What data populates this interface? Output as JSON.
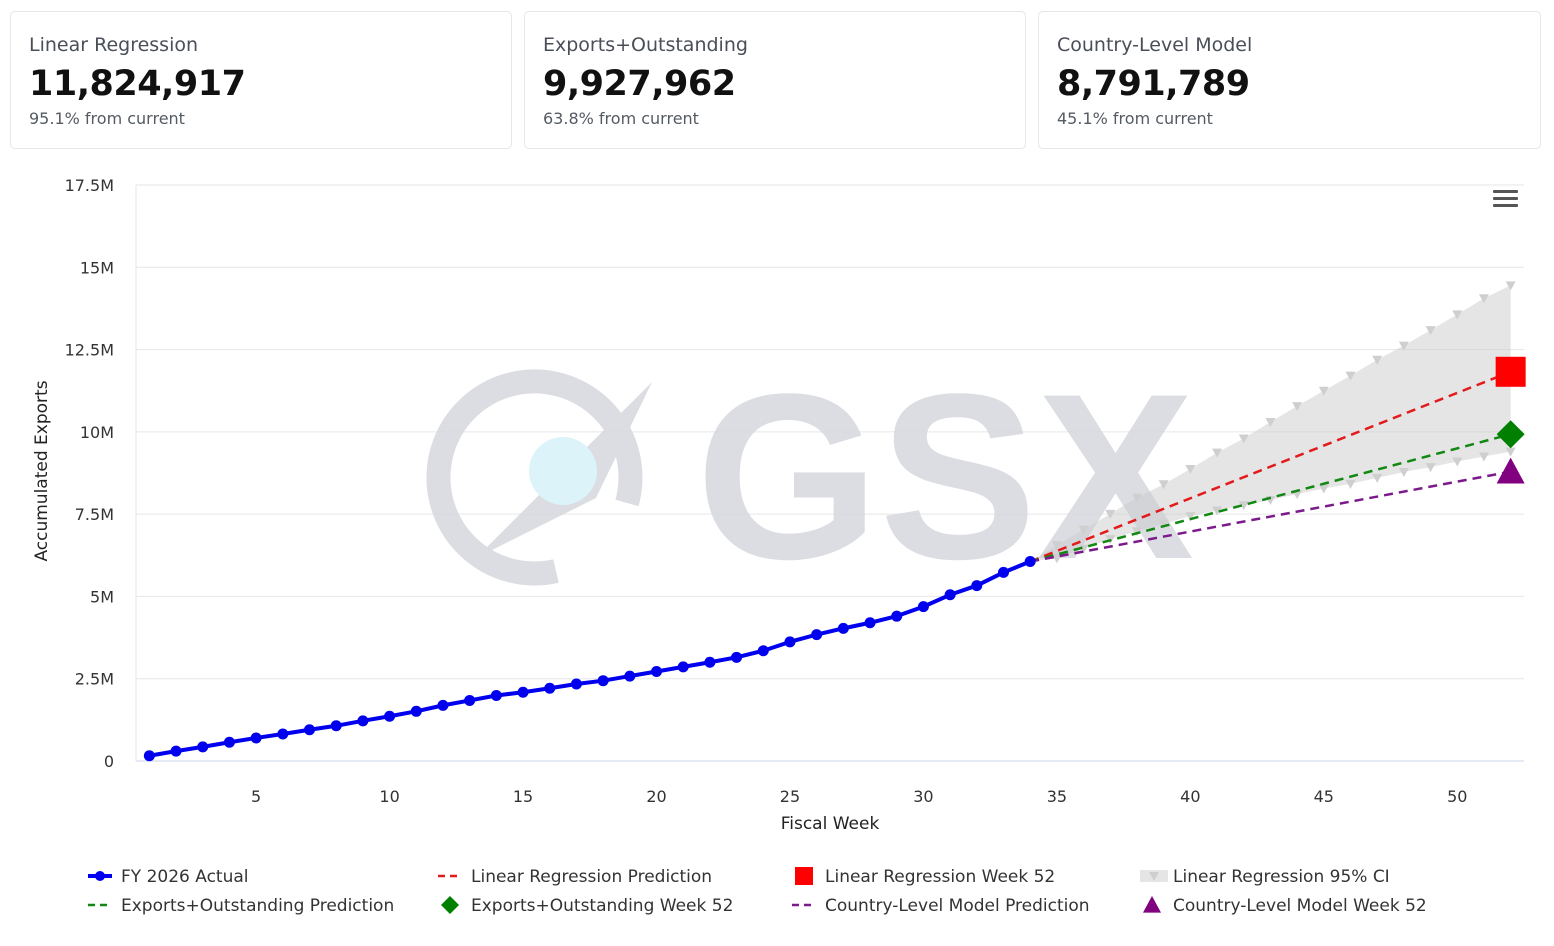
{
  "cards": [
    {
      "label": "Linear Regression",
      "value": "11,824,917",
      "sub": "95.1% from current"
    },
    {
      "label": "Exports+Outstanding",
      "value": "9,927,962",
      "sub": "63.8% from current"
    },
    {
      "label": "Country-Level Model",
      "value": "8,791,789",
      "sub": "45.1% from current"
    }
  ],
  "watermark": "GSX",
  "chart_data": {
    "type": "line",
    "xlabel": "Fiscal Week",
    "ylabel": "Accumulated Exports",
    "xlim": [
      0.5,
      52.5
    ],
    "ylim": [
      0,
      17500000
    ],
    "x_ticks": [
      5,
      10,
      15,
      20,
      25,
      30,
      35,
      40,
      45,
      50
    ],
    "y_ticks": [
      0,
      2500000,
      5000000,
      7500000,
      10000000,
      12500000,
      15000000,
      17500000
    ],
    "y_tick_labels": [
      "0",
      "2.5M",
      "5M",
      "7.5M",
      "10M",
      "12.5M",
      "15M",
      "17.5M"
    ],
    "grid": "horizontal",
    "legend_position": "bottom",
    "actual": {
      "name": "FY 2026 Actual",
      "color": "#0000ee",
      "x": [
        1,
        2,
        3,
        4,
        5,
        6,
        7,
        8,
        9,
        10,
        11,
        12,
        13,
        14,
        15,
        16,
        17,
        18,
        19,
        20,
        21,
        22,
        23,
        24,
        25,
        26,
        27,
        28,
        29,
        30,
        31,
        32,
        33,
        34
      ],
      "values": [
        160000,
        300000,
        430000,
        570000,
        700000,
        820000,
        950000,
        1070000,
        1220000,
        1360000,
        1510000,
        1690000,
        1840000,
        1990000,
        2090000,
        2210000,
        2340000,
        2440000,
        2580000,
        2720000,
        2860000,
        3000000,
        3150000,
        3350000,
        3620000,
        3840000,
        4030000,
        4200000,
        4400000,
        4690000,
        5050000,
        5330000,
        5730000,
        6060000
      ]
    },
    "predictions": [
      {
        "name": "Linear Regression Prediction",
        "color": "#e31a1c",
        "start": [
          34,
          6060000
        ],
        "end": [
          52,
          11824917
        ]
      },
      {
        "name": "Exports+Outstanding Prediction",
        "color": "#118811",
        "start": [
          34,
          6060000
        ],
        "end": [
          52,
          9927962
        ]
      },
      {
        "name": "Country-Level Model Prediction",
        "color": "#7b1a8a",
        "start": [
          34,
          6060000
        ],
        "end": [
          52,
          8791789
        ]
      }
    ],
    "week52": [
      {
        "name": "Linear Regression Week 52",
        "color": "#ff0000",
        "marker": "square",
        "x": 52,
        "value": 11824917
      },
      {
        "name": "Exports+Outstanding Week 52",
        "color": "#008000",
        "marker": "diamond",
        "x": 52,
        "value": 9927962
      },
      {
        "name": "Country-Level Model Week 52",
        "color": "#800080",
        "marker": "triangle",
        "x": 52,
        "value": 8791789
      }
    ],
    "ci": {
      "name": "Linear Regression 95% CI",
      "color": "#cccccc",
      "x": [
        34,
        35,
        36,
        37,
        38,
        39,
        40,
        41,
        42,
        43,
        44,
        45,
        46,
        47,
        48,
        49,
        50,
        51,
        52
      ],
      "upper": [
        6060000,
        6560000,
        7030000,
        7510000,
        8000000,
        8410000,
        8870000,
        9370000,
        9800000,
        10300000,
        10780000,
        11250000,
        11710000,
        12190000,
        12620000,
        13090000,
        13570000,
        14060000,
        14450000
      ],
      "lower": [
        6060000,
        6160000,
        6450000,
        6740000,
        6980000,
        7210000,
        7440000,
        7610000,
        7770000,
        7930000,
        8110000,
        8280000,
        8420000,
        8600000,
        8780000,
        8930000,
        9100000,
        9250000,
        9400000
      ]
    },
    "legend": [
      {
        "name": "FY 2026 Actual",
        "symbol": "line-dot",
        "color": "#0000ee"
      },
      {
        "name": "Linear Regression Prediction",
        "symbol": "dash",
        "color": "#e31a1c"
      },
      {
        "name": "Linear Regression Week 52",
        "symbol": "square",
        "color": "#ff0000"
      },
      {
        "name": "Linear Regression 95% CI",
        "symbol": "ci",
        "color": "#cccccc"
      },
      {
        "name": "Exports+Outstanding Prediction",
        "symbol": "dash",
        "color": "#118811"
      },
      {
        "name": "Exports+Outstanding Week 52",
        "symbol": "diamond",
        "color": "#008000"
      },
      {
        "name": "Country-Level Model Prediction",
        "symbol": "dash",
        "color": "#7b1a8a"
      },
      {
        "name": "Country-Level Model Week 52",
        "symbol": "triangle",
        "color": "#800080"
      }
    ]
  }
}
